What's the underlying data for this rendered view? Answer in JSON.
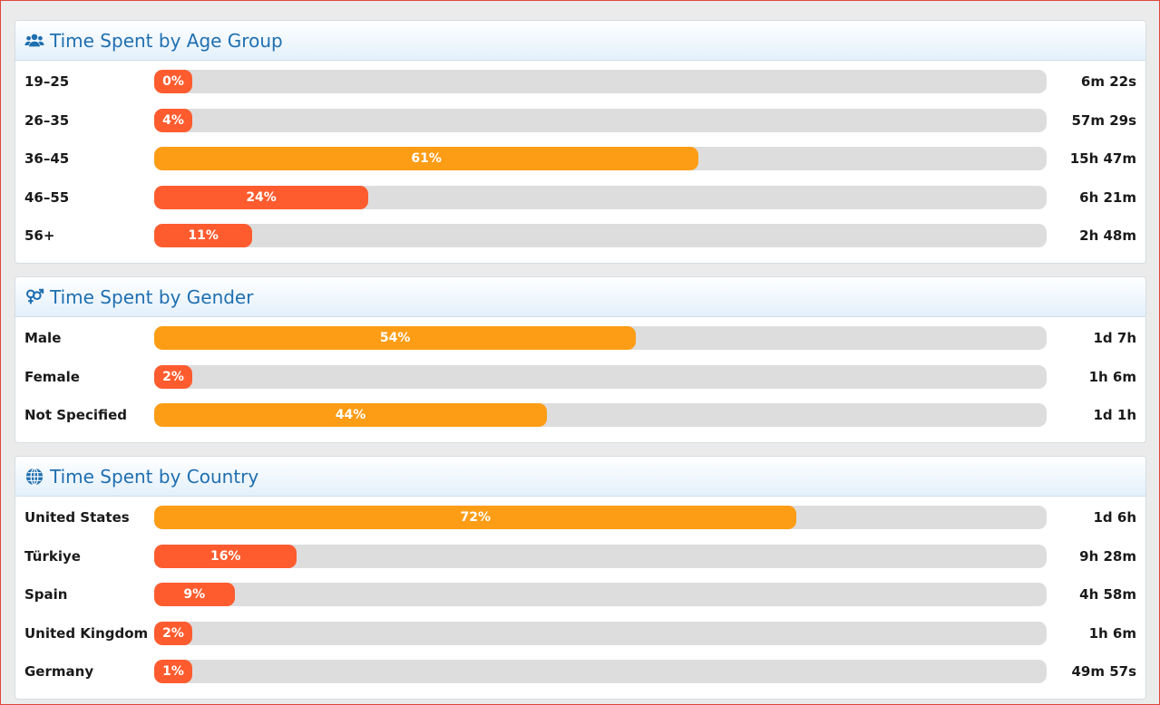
{
  "colors": {
    "accent": "#1f6fb0",
    "bar_high": "#fd9d16",
    "bar_low": "#fe5c2f",
    "track": "#dddddd"
  },
  "age": {
    "title": "Time Spent by Age Group",
    "icon": "users-icon",
    "rows": [
      {
        "label": "19–25",
        "percent": 0,
        "percent_text": "0%",
        "value": "6m 22s"
      },
      {
        "label": "26–35",
        "percent": 4,
        "percent_text": "4%",
        "value": "57m 29s"
      },
      {
        "label": "36–45",
        "percent": 61,
        "percent_text": "61%",
        "value": "15h 47m"
      },
      {
        "label": "46–55",
        "percent": 24,
        "percent_text": "24%",
        "value": "6h 21m"
      },
      {
        "label": "56+",
        "percent": 11,
        "percent_text": "11%",
        "value": "2h 48m"
      }
    ]
  },
  "gender": {
    "title": "Time Spent by Gender",
    "icon": "gender-icon",
    "rows": [
      {
        "label": "Male",
        "percent": 54,
        "percent_text": "54%",
        "value": "1d 7h"
      },
      {
        "label": "Female",
        "percent": 2,
        "percent_text": "2%",
        "value": "1h 6m"
      },
      {
        "label": "Not Specified",
        "percent": 44,
        "percent_text": "44%",
        "value": "1d 1h"
      }
    ]
  },
  "country": {
    "title": "Time Spent by Country",
    "icon": "globe-icon",
    "rows": [
      {
        "label": "United States",
        "percent": 72,
        "percent_text": "72%",
        "value": "1d 6h"
      },
      {
        "label": "Türkiye",
        "percent": 16,
        "percent_text": "16%",
        "value": "9h 28m"
      },
      {
        "label": "Spain",
        "percent": 9,
        "percent_text": "9%",
        "value": "4h 58m"
      },
      {
        "label": "United Kingdom",
        "percent": 2,
        "percent_text": "2%",
        "value": "1h 6m"
      },
      {
        "label": "Germany",
        "percent": 1,
        "percent_text": "1%",
        "value": "49m 57s"
      }
    ]
  }
}
